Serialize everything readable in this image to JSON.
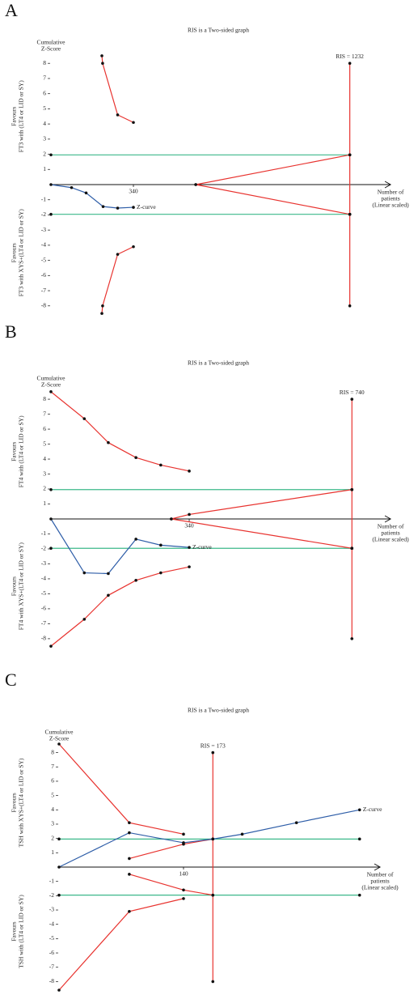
{
  "chart_data": [
    {
      "type": "line",
      "panel": "A",
      "title": "RIS is a Two-sided graph",
      "y_label": [
        "Cumulative",
        "Z-Score"
      ],
      "x_label": [
        "Number of",
        "patients",
        "(Linear scaled)"
      ],
      "upper_label": [
        "Favours",
        "FT3 with (LT4 or LID or SY)"
      ],
      "lower_label": [
        "Favours",
        "FT3 with XYS+(LT4 or LID or SY)"
      ],
      "ris_label": "RIS = 1232",
      "xlim": [
        0,
        1400
      ],
      "ylim": [
        -8.6,
        8.6
      ],
      "xticks": [
        340
      ],
      "yticks": [
        -8,
        -7,
        -6,
        -5,
        -4,
        -3,
        -2,
        -1,
        1,
        2,
        3,
        4,
        5,
        6,
        7,
        8
      ],
      "series": [
        {
          "color": "#3cb88a",
          "x": [
            0,
            1232
          ],
          "values": [
            1.96,
            1.96
          ]
        },
        {
          "color": "#3cb88a",
          "x": [
            0,
            1232
          ],
          "values": [
            -1.96,
            -1.96
          ]
        },
        {
          "color": "#e8332f",
          "x": [
            210,
            213,
            275,
            340
          ],
          "values": [
            8.5,
            8.0,
            4.6,
            4.1
          ]
        },
        {
          "color": "#e8332f",
          "x": [
            210,
            213,
            275,
            340
          ],
          "values": [
            -8.5,
            -8.0,
            -4.6,
            -4.1
          ]
        },
        {
          "color": "#e8332f",
          "x": [
            597,
            1232
          ],
          "values": [
            0,
            1.96
          ]
        },
        {
          "color": "#e8332f",
          "x": [
            597,
            1232
          ],
          "values": [
            0,
            -1.96
          ]
        },
        {
          "color": "#e8332f",
          "x": [
            1232,
            1232,
            1232,
            1232
          ],
          "values": [
            8,
            1.96,
            -1.96,
            -8
          ]
        },
        {
          "name": "Z-curve",
          "color": "#2f5ea8",
          "x": [
            0,
            85,
            145,
            215,
            275,
            340
          ],
          "values": [
            0,
            -0.2,
            -0.55,
            -1.45,
            -1.55,
            -1.5
          ]
        }
      ]
    },
    {
      "type": "line",
      "panel": "B",
      "title": "RIS is a Two-sided graph",
      "y_label": [
        "Cumulative",
        "Z-Score"
      ],
      "x_label": [
        "Number of",
        "patients",
        "(Linear scaled)"
      ],
      "upper_label": [
        "Favours",
        "FT4 with (LT4 or LID or SY)"
      ],
      "lower_label": [
        "Favours",
        "FT4 with XYS+(LT4 or LID or SY)"
      ],
      "ris_label": "RIS = 740",
      "xlim": [
        0,
        835
      ],
      "ylim": [
        -8.6,
        8.6
      ],
      "xticks": [
        340
      ],
      "yticks": [
        -8,
        -7,
        -6,
        -5,
        -4,
        -3,
        -2,
        -1,
        1,
        2,
        3,
        4,
        5,
        6,
        7,
        8
      ],
      "series": [
        {
          "color": "#3cb88a",
          "x": [
            0,
            740
          ],
          "values": [
            1.96,
            1.96
          ]
        },
        {
          "color": "#3cb88a",
          "x": [
            0,
            740
          ],
          "values": [
            -1.96,
            -1.96
          ]
        },
        {
          "color": "#e8332f",
          "x": [
            0,
            82,
            141,
            209,
            270,
            340
          ],
          "values": [
            8.5,
            6.7,
            5.1,
            4.1,
            3.6,
            3.2
          ]
        },
        {
          "color": "#e8332f",
          "x": [
            0,
            82,
            141,
            209,
            270,
            340
          ],
          "values": [
            -8.5,
            -6.7,
            -5.1,
            -4.1,
            -3.6,
            -3.2
          ]
        },
        {
          "color": "#e8332f",
          "x": [
            296,
            340,
            740
          ],
          "values": [
            0,
            0.3,
            1.96
          ]
        },
        {
          "color": "#e8332f",
          "x": [
            296,
            740
          ],
          "values": [
            0,
            -1.96
          ]
        },
        {
          "color": "#e8332f",
          "x": [
            740,
            740,
            740,
            740
          ],
          "values": [
            8,
            1.96,
            -1.96,
            -8
          ]
        },
        {
          "name": "Z-curve",
          "color": "#2f5ea8",
          "x": [
            0,
            82,
            141,
            209,
            270,
            340
          ],
          "values": [
            0,
            -3.6,
            -3.65,
            -1.35,
            -1.75,
            -1.9
          ]
        }
      ]
    },
    {
      "type": "line",
      "panel": "C",
      "title": "RIS is a Two-sided graph",
      "y_label": [
        "Cumulative",
        "Z-Score"
      ],
      "x_label": [
        "Number of",
        "patients",
        "(Linear scaled)"
      ],
      "upper_label": [
        "Favours",
        "TSH with XYS+(LT4 or LID or SY)"
      ],
      "lower_label": [
        "Favours",
        "TSH with (LT4 or LID or SY)"
      ],
      "ris_label": "RIS = 173",
      "xlim": [
        0,
        361
      ],
      "ylim": [
        -8.6,
        8.6
      ],
      "xticks": [
        140
      ],
      "yticks": [
        -8,
        -7,
        -6,
        -5,
        -4,
        -3,
        -2,
        -1,
        1,
        2,
        3,
        4,
        5,
        6,
        7,
        8
      ],
      "series": [
        {
          "color": "#3cb88a",
          "x": [
            0,
            338
          ],
          "values": [
            1.96,
            1.96
          ]
        },
        {
          "color": "#3cb88a",
          "x": [
            0,
            338
          ],
          "values": [
            -1.96,
            -1.96
          ]
        },
        {
          "color": "#e8332f",
          "x": [
            0,
            79,
            140
          ],
          "values": [
            8.6,
            3.1,
            2.3
          ]
        },
        {
          "color": "#e8332f",
          "x": [
            0,
            79,
            140
          ],
          "values": [
            -8.6,
            -3.1,
            -2.2
          ]
        },
        {
          "color": "#e8332f",
          "x": [
            79,
            140,
            173
          ],
          "values": [
            0.6,
            1.6,
            1.96
          ]
        },
        {
          "color": "#e8332f",
          "x": [
            79,
            140,
            173
          ],
          "values": [
            -0.5,
            -1.6,
            -1.96
          ]
        },
        {
          "color": "#e8332f",
          "x": [
            173,
            173,
            173,
            173
          ],
          "values": [
            8,
            1.96,
            -1.96,
            -8
          ]
        },
        {
          "name": "Z-curve",
          "color": "#2f5ea8",
          "x": [
            0,
            79,
            140,
            173,
            206,
            267,
            338
          ],
          "values": [
            0,
            2.4,
            1.7,
            1.96,
            2.3,
            3.1,
            4.0
          ]
        }
      ]
    }
  ]
}
